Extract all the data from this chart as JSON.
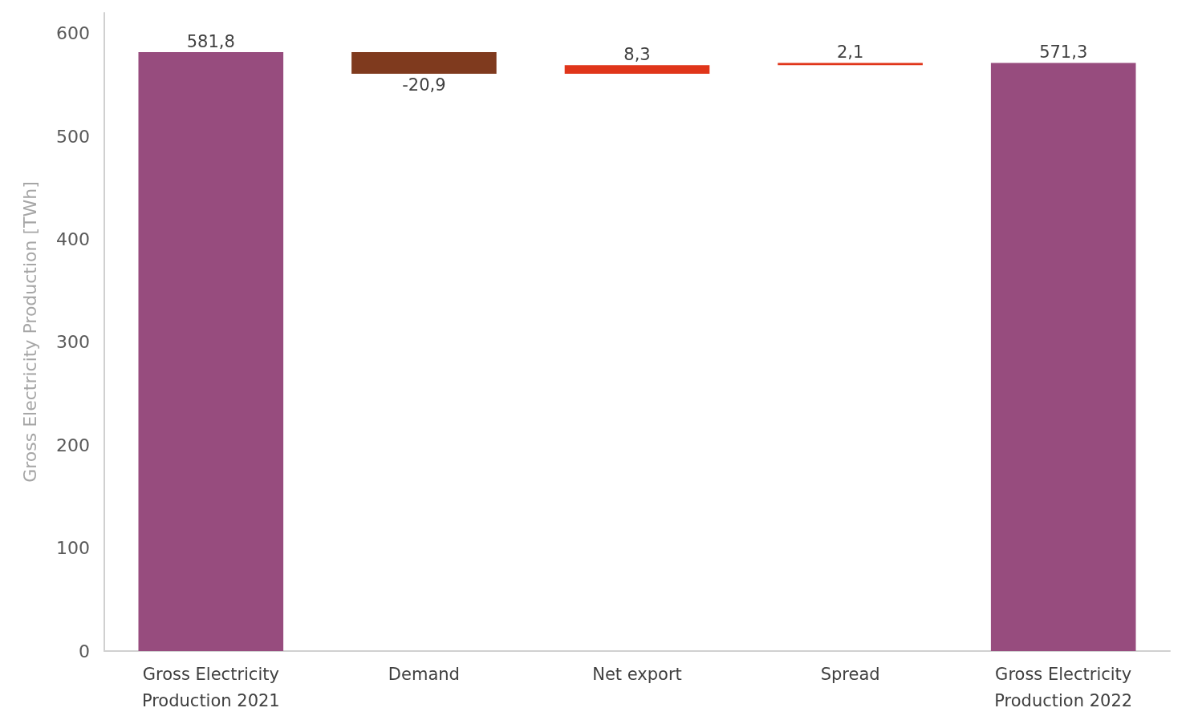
{
  "chart_data": {
    "type": "bar",
    "ylabel": "Gross Electricity Production [TWh]",
    "categories": [
      "Gross Electricity\nProduction 2021",
      "Demand",
      "Net export",
      "Spread",
      "Gross Electricity\nProduction 2022"
    ],
    "values": [
      581.8,
      -20.9,
      8.3,
      2.1,
      571.3
    ],
    "base": [
      0,
      581.8,
      560.9,
      569.2,
      0
    ],
    "colors": [
      "#974c7e",
      "#7f3a1e",
      "#e0351a",
      "#e0351a",
      "#974c7e"
    ],
    "value_labels": [
      "581,8",
      "-20,9",
      "8,3",
      "2,1",
      "571,3"
    ],
    "ylim": [
      0,
      620
    ],
    "yticks": [
      0,
      100,
      200,
      300,
      400,
      500,
      600
    ],
    "grid": false
  }
}
